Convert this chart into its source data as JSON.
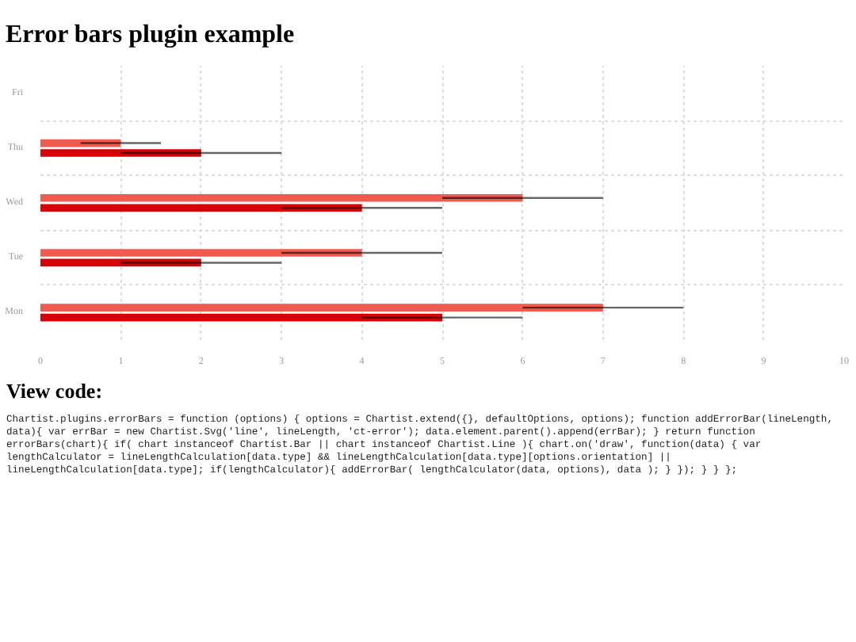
{
  "chart_data": {
    "type": "bar",
    "orientation": "horizontal",
    "title": "Error bars plugin example",
    "categories": [
      "Fri",
      "Thu",
      "Wed",
      "Tue",
      "Mon"
    ],
    "series": [
      {
        "color": "#f05b4f",
        "values": [
          null,
          1,
          6,
          4,
          7
        ],
        "errors": [
          null,
          0.5,
          1,
          1,
          1
        ]
      },
      {
        "color": "#d70206",
        "values": [
          null,
          2,
          4,
          2,
          5
        ],
        "errors": [
          null,
          1,
          1,
          1,
          1
        ]
      }
    ],
    "xlim": [
      0,
      10
    ],
    "xticks": [
      0,
      1,
      2,
      3,
      4,
      5,
      6,
      7,
      8,
      9,
      10
    ],
    "grid": true,
    "annotations": [
      "View code:",
      "Chartist.plugins.errorBars = function (options) { options = Chartist.extend({}, defaultOptions, options); function addErrorBar(lineLength, data){ var errBar = new Chartist.Svg('line', lineLength, 'ct-error'); data.element.parent().append(errBar); } return function errorBars(chart){ if( chart instanceof Chartist.Bar || chart instanceof Chartist.Line ){ chart.on('draw', function(data) { var lengthCalculator = lineLengthCalculation[data.type] && lineLengthCalculation[data.type][options.orientation] || lineLengthCalculation[data.type]; if(lengthCalculator){ addErrorBar( lengthCalculator(data, options), data ); } }); } } };"
    ]
  }
}
